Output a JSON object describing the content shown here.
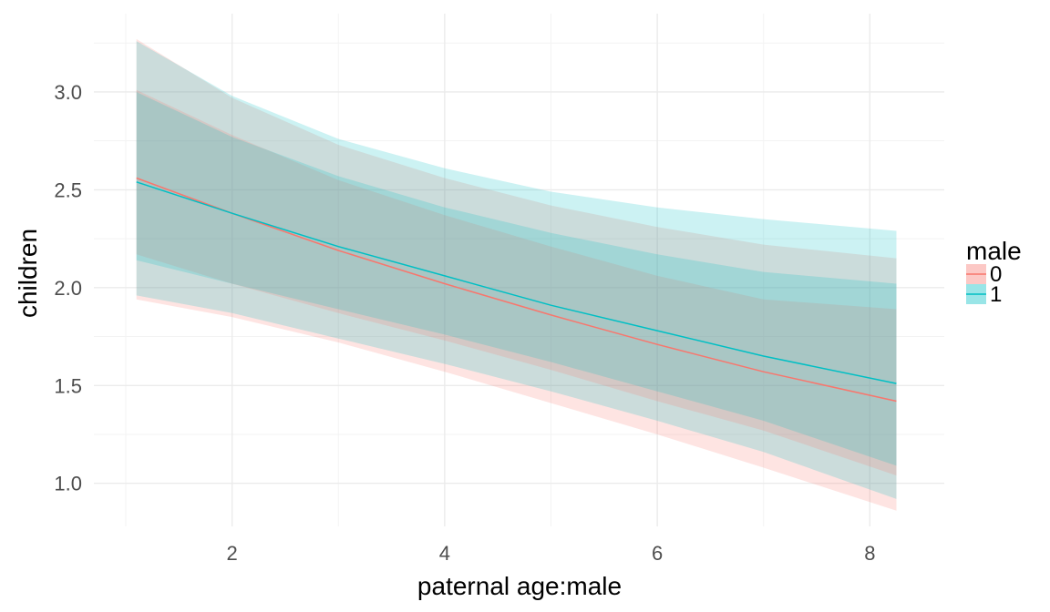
{
  "chart_data": {
    "type": "line",
    "xlabel": "paternal age:male",
    "ylabel": "children",
    "xlim": [
      0.7,
      8.7
    ],
    "ylim": [
      0.78,
      3.4
    ],
    "x_ticks": [
      2,
      4,
      6,
      8
    ],
    "x_tick_labels": [
      "2",
      "4",
      "6",
      "8"
    ],
    "y_ticks": [
      1.0,
      1.5,
      2.0,
      2.5,
      3.0
    ],
    "y_tick_labels": [
      "1.0",
      "1.5",
      "2.0",
      "2.5",
      "3.0"
    ],
    "grid": true,
    "legend": {
      "title": "male",
      "placement": "right"
    },
    "series": [
      {
        "name": "0",
        "color": "#F8766D",
        "x": [
          1.1,
          2,
          3,
          4,
          5,
          6,
          7,
          8.25
        ],
        "y": [
          2.56,
          2.38,
          2.19,
          2.02,
          1.86,
          1.71,
          1.57,
          1.42
        ],
        "ci95_lower": [
          1.94,
          1.85,
          1.72,
          1.57,
          1.41,
          1.25,
          1.08,
          0.86
        ],
        "ci95_upper": [
          3.27,
          2.97,
          2.73,
          2.56,
          2.42,
          2.31,
          2.22,
          2.15
        ],
        "ci80_lower": [
          2.17,
          2.02,
          1.87,
          1.73,
          1.58,
          1.42,
          1.27,
          1.04
        ],
        "ci80_upper": [
          3.01,
          2.78,
          2.55,
          2.37,
          2.21,
          2.06,
          1.94,
          1.89
        ]
      },
      {
        "name": "1",
        "color": "#00BFC4",
        "x": [
          1.1,
          2,
          3,
          4,
          5,
          6,
          7,
          8.25
        ],
        "y": [
          2.54,
          2.38,
          2.21,
          2.06,
          1.91,
          1.78,
          1.65,
          1.51
        ],
        "ci95_lower": [
          1.96,
          1.87,
          1.74,
          1.61,
          1.47,
          1.32,
          1.16,
          0.92
        ],
        "ci95_upper": [
          3.26,
          2.98,
          2.76,
          2.61,
          2.49,
          2.41,
          2.35,
          2.29
        ],
        "ci80_lower": [
          2.14,
          2.02,
          1.89,
          1.76,
          1.62,
          1.47,
          1.32,
          1.09
        ],
        "ci80_upper": [
          3.0,
          2.77,
          2.57,
          2.41,
          2.28,
          2.17,
          2.08,
          2.02
        ]
      }
    ]
  }
}
